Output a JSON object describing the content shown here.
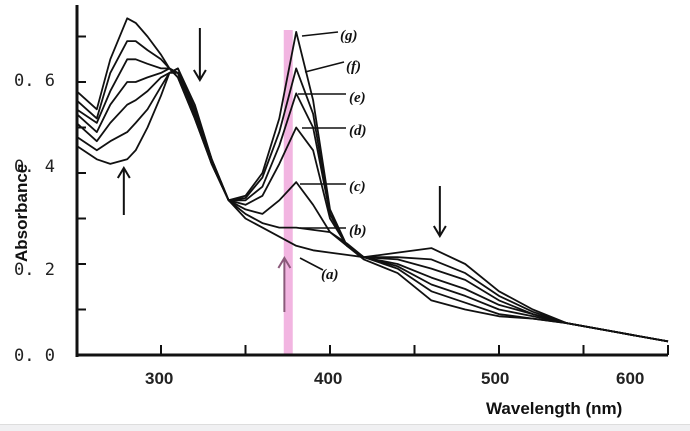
{
  "chart_data": {
    "type": "line",
    "title": "",
    "xlabel": "Wavelength (nm)",
    "ylabel": "Absorbance",
    "xlim": [
      250,
      607
    ],
    "ylim": [
      0.0,
      0.77
    ],
    "x_ticks": [
      300,
      400,
      500,
      600
    ],
    "x_tick_labels": [
      "300",
      "400",
      "500",
      "600"
    ],
    "y_ticks": [
      0.0,
      0.2,
      0.4,
      0.6
    ],
    "y_tick_labels": [
      "0. 0",
      "0. 2",
      "0. 4",
      "0. 6"
    ],
    "grid": false,
    "line_color": "#111111",
    "highlight": {
      "wavelength": 375,
      "color": "#f0a8dc"
    },
    "arrows": [
      {
        "wavelength": 278,
        "direction": "up",
        "color": "#111111"
      },
      {
        "wavelength": 323,
        "direction": "down",
        "color": "#111111"
      },
      {
        "wavelength": 373,
        "direction": "up",
        "color": "#8a5a7a"
      },
      {
        "wavelength": 465,
        "direction": "down",
        "color": "#111111"
      }
    ],
    "x": [
      250,
      262,
      270,
      280,
      285,
      292,
      300,
      305,
      310,
      320,
      330,
      340,
      350,
      360,
      370,
      380,
      390,
      400,
      410,
      420,
      440,
      460,
      480,
      500,
      520,
      540,
      570,
      600
    ],
    "series": [
      {
        "name": "(a)",
        "values": [
          0.46,
          0.43,
          0.42,
          0.43,
          0.45,
          0.5,
          0.57,
          0.62,
          0.63,
          0.55,
          0.43,
          0.34,
          0.3,
          0.28,
          0.26,
          0.24,
          0.23,
          0.225,
          0.22,
          0.215,
          0.225,
          0.235,
          0.2,
          0.14,
          0.1,
          0.07,
          0.05,
          0.03
        ]
      },
      {
        "name": "(b)",
        "values": [
          0.48,
          0.45,
          0.47,
          0.49,
          0.51,
          0.54,
          0.59,
          0.62,
          0.63,
          0.54,
          0.43,
          0.34,
          0.31,
          0.29,
          0.28,
          0.28,
          0.275,
          0.27,
          0.245,
          0.215,
          0.215,
          0.21,
          0.18,
          0.13,
          0.095,
          0.07,
          0.05,
          0.03
        ]
      },
      {
        "name": "(c)",
        "values": [
          0.51,
          0.47,
          0.51,
          0.55,
          0.56,
          0.58,
          0.61,
          0.62,
          0.62,
          0.54,
          0.43,
          0.34,
          0.32,
          0.31,
          0.34,
          0.38,
          0.33,
          0.27,
          0.24,
          0.215,
          0.21,
          0.19,
          0.165,
          0.12,
          0.09,
          0.07,
          0.05,
          0.03
        ]
      },
      {
        "name": "(d)",
        "values": [
          0.53,
          0.49,
          0.55,
          0.6,
          0.6,
          0.61,
          0.62,
          0.63,
          0.62,
          0.53,
          0.42,
          0.34,
          0.33,
          0.35,
          0.42,
          0.5,
          0.45,
          0.3,
          0.24,
          0.215,
          0.2,
          0.17,
          0.145,
          0.11,
          0.09,
          0.07,
          0.05,
          0.03
        ]
      },
      {
        "name": "(e)",
        "values": [
          0.54,
          0.51,
          0.58,
          0.65,
          0.65,
          0.64,
          0.63,
          0.63,
          0.62,
          0.53,
          0.42,
          0.34,
          0.34,
          0.37,
          0.46,
          0.575,
          0.5,
          0.31,
          0.24,
          0.215,
          0.195,
          0.155,
          0.13,
          0.1,
          0.085,
          0.07,
          0.05,
          0.03
        ]
      },
      {
        "name": "(f)",
        "values": [
          0.56,
          0.52,
          0.62,
          0.69,
          0.69,
          0.67,
          0.65,
          0.63,
          0.61,
          0.52,
          0.42,
          0.34,
          0.345,
          0.39,
          0.49,
          0.63,
          0.53,
          0.31,
          0.24,
          0.215,
          0.19,
          0.14,
          0.115,
          0.09,
          0.08,
          0.07,
          0.05,
          0.03
        ]
      },
      {
        "name": "(g)",
        "values": [
          0.58,
          0.54,
          0.65,
          0.74,
          0.73,
          0.7,
          0.66,
          0.63,
          0.61,
          0.52,
          0.42,
          0.34,
          0.35,
          0.4,
          0.52,
          0.71,
          0.56,
          0.32,
          0.24,
          0.21,
          0.18,
          0.12,
          0.1,
          0.085,
          0.08,
          0.07,
          0.05,
          0.03
        ]
      }
    ]
  }
}
